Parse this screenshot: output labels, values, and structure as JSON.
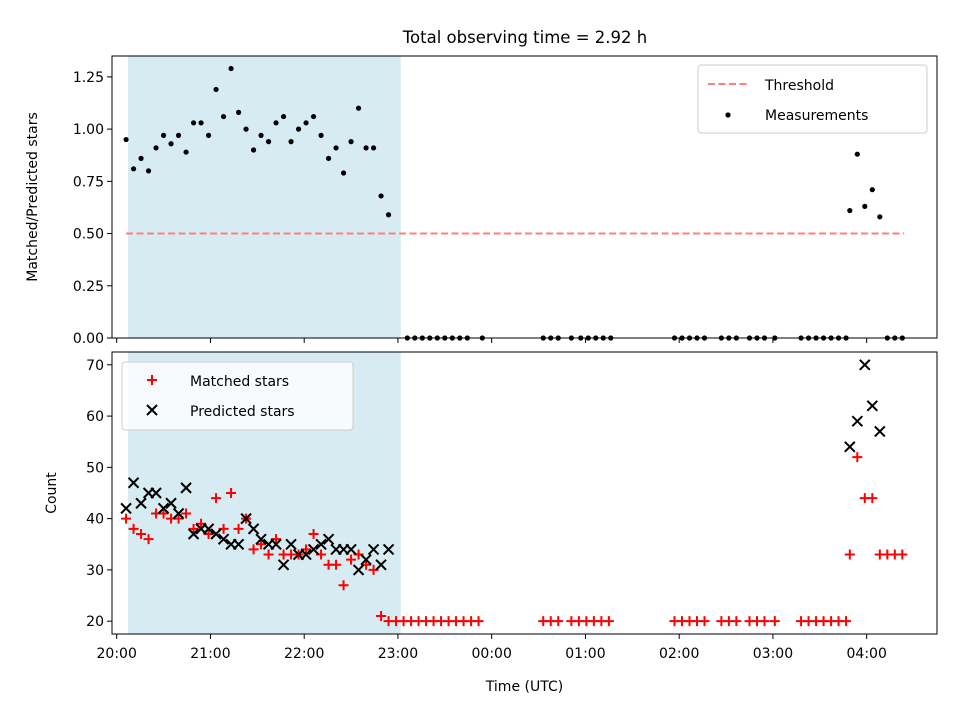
{
  "title": "Total observing time = 2.92 h",
  "chart_data": [
    {
      "type": "scatter",
      "ylabel": "Matched/Predicted stars",
      "ylim": [
        0.0,
        1.35
      ],
      "yticks": [
        0.0,
        0.25,
        0.5,
        0.75,
        1.0,
        1.25
      ],
      "ytick_labels": [
        "0.00",
        "0.25",
        "0.50",
        "0.75",
        "1.00",
        "1.25"
      ],
      "xlim_hours": [
        19.95,
        28.75
      ],
      "shaded_span_hours": [
        20.12,
        23.03
      ],
      "legend_position": "upper right",
      "threshold": {
        "name": "Threshold",
        "value": 0.5,
        "x_start": 20.1,
        "x_end": 28.4,
        "color": "#ff7f7f"
      },
      "series": [
        {
          "name": "Measurements",
          "color": "#000000",
          "marker": "dot",
          "points": [
            [
              20.1,
              0.95
            ],
            [
              20.18,
              0.81
            ],
            [
              20.26,
              0.86
            ],
            [
              20.34,
              0.8
            ],
            [
              20.42,
              0.91
            ],
            [
              20.5,
              0.97
            ],
            [
              20.58,
              0.93
            ],
            [
              20.66,
              0.97
            ],
            [
              20.74,
              0.89
            ],
            [
              20.82,
              1.03
            ],
            [
              20.9,
              1.03
            ],
            [
              20.98,
              0.97
            ],
            [
              21.06,
              1.19
            ],
            [
              21.14,
              1.06
            ],
            [
              21.22,
              1.29
            ],
            [
              21.3,
              1.08
            ],
            [
              21.38,
              1.0
            ],
            [
              21.46,
              0.9
            ],
            [
              21.54,
              0.97
            ],
            [
              21.62,
              0.94
            ],
            [
              21.7,
              1.03
            ],
            [
              21.78,
              1.06
            ],
            [
              21.86,
              0.94
            ],
            [
              21.94,
              1.0
            ],
            [
              22.02,
              1.03
            ],
            [
              22.1,
              1.06
            ],
            [
              22.18,
              0.97
            ],
            [
              22.26,
              0.86
            ],
            [
              22.34,
              0.91
            ],
            [
              22.42,
              0.79
            ],
            [
              22.5,
              0.94
            ],
            [
              22.58,
              1.1
            ],
            [
              22.66,
              0.91
            ],
            [
              22.74,
              0.91
            ],
            [
              22.82,
              0.68
            ],
            [
              22.9,
              0.59
            ],
            [
              23.1,
              0.0
            ],
            [
              23.18,
              0.0
            ],
            [
              23.26,
              0.0
            ],
            [
              23.34,
              0.0
            ],
            [
              23.42,
              0.0
            ],
            [
              23.5,
              0.0
            ],
            [
              23.58,
              0.0
            ],
            [
              23.66,
              0.0
            ],
            [
              23.74,
              0.0
            ],
            [
              23.9,
              0.0
            ],
            [
              24.55,
              0.0
            ],
            [
              24.63,
              0.0
            ],
            [
              24.71,
              0.0
            ],
            [
              24.85,
              0.0
            ],
            [
              24.95,
              0.0
            ],
            [
              25.03,
              0.0
            ],
            [
              25.11,
              0.0
            ],
            [
              25.19,
              0.0
            ],
            [
              25.27,
              0.0
            ],
            [
              25.95,
              0.0
            ],
            [
              26.03,
              0.0
            ],
            [
              26.11,
              0.0
            ],
            [
              26.19,
              0.0
            ],
            [
              26.27,
              0.0
            ],
            [
              26.45,
              0.0
            ],
            [
              26.53,
              0.0
            ],
            [
              26.61,
              0.0
            ],
            [
              26.75,
              0.0
            ],
            [
              26.83,
              0.0
            ],
            [
              26.91,
              0.0
            ],
            [
              27.02,
              0.0
            ],
            [
              27.3,
              0.0
            ],
            [
              27.38,
              0.0
            ],
            [
              27.46,
              0.0
            ],
            [
              27.54,
              0.0
            ],
            [
              27.62,
              0.0
            ],
            [
              27.7,
              0.0
            ],
            [
              27.78,
              0.0
            ],
            [
              27.82,
              0.61
            ],
            [
              27.9,
              0.88
            ],
            [
              27.98,
              0.63
            ],
            [
              28.06,
              0.71
            ],
            [
              28.14,
              0.58
            ],
            [
              28.22,
              0.0
            ],
            [
              28.3,
              0.0
            ],
            [
              28.38,
              0.0
            ]
          ]
        }
      ]
    },
    {
      "type": "scatter",
      "xlabel": "Time (UTC)",
      "ylabel": "Count",
      "ylim": [
        17.5,
        72.5
      ],
      "yticks": [
        20,
        30,
        40,
        50,
        60,
        70
      ],
      "ytick_labels": [
        "20",
        "30",
        "40",
        "50",
        "60",
        "70"
      ],
      "xlim_hours": [
        19.95,
        28.75
      ],
      "xticks_hours": [
        20,
        21,
        22,
        23,
        24,
        25,
        26,
        27,
        28
      ],
      "xtick_labels": [
        "20:00",
        "21:00",
        "22:00",
        "23:00",
        "00:00",
        "01:00",
        "02:00",
        "03:00",
        "04:00"
      ],
      "shaded_span_hours": [
        20.12,
        23.03
      ],
      "legend_position": "upper left",
      "series": [
        {
          "name": "Matched stars",
          "color": "#ff0000",
          "marker": "plus",
          "points": [
            [
              20.1,
              40
            ],
            [
              20.18,
              38
            ],
            [
              20.26,
              37
            ],
            [
              20.34,
              36
            ],
            [
              20.42,
              41
            ],
            [
              20.5,
              41
            ],
            [
              20.58,
              40
            ],
            [
              20.66,
              40
            ],
            [
              20.74,
              41
            ],
            [
              20.82,
              38
            ],
            [
              20.9,
              39
            ],
            [
              20.98,
              37
            ],
            [
              21.06,
              44
            ],
            [
              21.14,
              38
            ],
            [
              21.22,
              45
            ],
            [
              21.3,
              38
            ],
            [
              21.38,
              40
            ],
            [
              21.46,
              34
            ],
            [
              21.54,
              35
            ],
            [
              21.62,
              33
            ],
            [
              21.7,
              36
            ],
            [
              21.78,
              33
            ],
            [
              21.86,
              33
            ],
            [
              21.94,
              33
            ],
            [
              22.02,
              34
            ],
            [
              22.1,
              37
            ],
            [
              22.18,
              33
            ],
            [
              22.26,
              31
            ],
            [
              22.34,
              31
            ],
            [
              22.42,
              27
            ],
            [
              22.5,
              32
            ],
            [
              22.58,
              33
            ],
            [
              22.66,
              31
            ],
            [
              22.74,
              30
            ],
            [
              22.82,
              21
            ],
            [
              22.9,
              20
            ],
            [
              22.98,
              20
            ],
            [
              23.06,
              20
            ],
            [
              23.14,
              20
            ],
            [
              23.22,
              20
            ],
            [
              23.3,
              20
            ],
            [
              23.38,
              20
            ],
            [
              23.46,
              20
            ],
            [
              23.54,
              20
            ],
            [
              23.62,
              20
            ],
            [
              23.7,
              20
            ],
            [
              23.78,
              20
            ],
            [
              23.86,
              20
            ],
            [
              24.55,
              20
            ],
            [
              24.63,
              20
            ],
            [
              24.71,
              20
            ],
            [
              24.85,
              20
            ],
            [
              24.93,
              20
            ],
            [
              25.01,
              20
            ],
            [
              25.09,
              20
            ],
            [
              25.17,
              20
            ],
            [
              25.25,
              20
            ],
            [
              25.95,
              20
            ],
            [
              26.03,
              20
            ],
            [
              26.11,
              20
            ],
            [
              26.19,
              20
            ],
            [
              26.27,
              20
            ],
            [
              26.45,
              20
            ],
            [
              26.53,
              20
            ],
            [
              26.61,
              20
            ],
            [
              26.75,
              20
            ],
            [
              26.83,
              20
            ],
            [
              26.91,
              20
            ],
            [
              27.02,
              20
            ],
            [
              27.3,
              20
            ],
            [
              27.38,
              20
            ],
            [
              27.46,
              20
            ],
            [
              27.54,
              20
            ],
            [
              27.62,
              20
            ],
            [
              27.7,
              20
            ],
            [
              27.78,
              20
            ],
            [
              27.82,
              33
            ],
            [
              27.9,
              52
            ],
            [
              27.98,
              44
            ],
            [
              28.06,
              44
            ],
            [
              28.14,
              33
            ],
            [
              28.22,
              33
            ],
            [
              28.3,
              33
            ],
            [
              28.38,
              33
            ]
          ]
        },
        {
          "name": "Predicted stars",
          "color": "#000000",
          "marker": "x",
          "points": [
            [
              20.1,
              42
            ],
            [
              20.18,
              47
            ],
            [
              20.26,
              43
            ],
            [
              20.34,
              45
            ],
            [
              20.42,
              45
            ],
            [
              20.5,
              42
            ],
            [
              20.58,
              43
            ],
            [
              20.66,
              41
            ],
            [
              20.74,
              46
            ],
            [
              20.82,
              37
            ],
            [
              20.9,
              38
            ],
            [
              20.98,
              38
            ],
            [
              21.06,
              37
            ],
            [
              21.14,
              36
            ],
            [
              21.22,
              35
            ],
            [
              21.3,
              35
            ],
            [
              21.38,
              40
            ],
            [
              21.46,
              38
            ],
            [
              21.54,
              36
            ],
            [
              21.62,
              35
            ],
            [
              21.7,
              35
            ],
            [
              21.78,
              31
            ],
            [
              21.86,
              35
            ],
            [
              21.94,
              33
            ],
            [
              22.02,
              33
            ],
            [
              22.1,
              34
            ],
            [
              22.18,
              35
            ],
            [
              22.26,
              36
            ],
            [
              22.34,
              34
            ],
            [
              22.42,
              34
            ],
            [
              22.5,
              34
            ],
            [
              22.58,
              30
            ],
            [
              22.66,
              32
            ],
            [
              22.74,
              34
            ],
            [
              22.82,
              31
            ],
            [
              22.9,
              34
            ],
            [
              27.82,
              54
            ],
            [
              27.9,
              59
            ],
            [
              27.98,
              70
            ],
            [
              28.06,
              62
            ],
            [
              28.14,
              57
            ]
          ]
        }
      ]
    }
  ]
}
